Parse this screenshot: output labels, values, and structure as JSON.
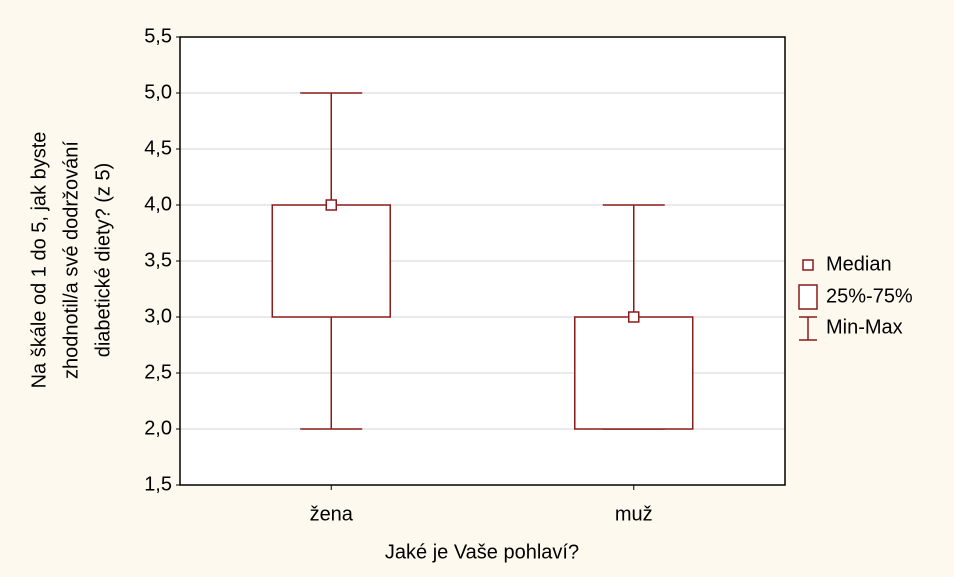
{
  "chart_data": {
    "type": "box",
    "ylabel": [
      "Na škále od 1 do 5, jak byste",
      "zhodnotil/a své dodržování",
      "diabetické diety? (z 5)"
    ],
    "xlabel": "Jaké je Vaše pohlaví?",
    "categories": [
      "žena",
      "muž"
    ],
    "min": [
      2,
      2
    ],
    "q1": [
      3,
      2
    ],
    "median": [
      4,
      3
    ],
    "q3": [
      4,
      3
    ],
    "max": [
      5,
      4
    ],
    "color": "#8b1a1a",
    "legend": [
      "Median",
      "25%-75%",
      "Min-Max"
    ],
    "legend_position": "right",
    "ylim": [
      1.5,
      5.5
    ],
    "yticks": [
      {
        "value": 1.5,
        "label": "1,5"
      },
      {
        "value": 2,
        "label": "2,0"
      },
      {
        "value": 2.5,
        "label": "2,5"
      },
      {
        "value": 3,
        "label": "3,0"
      },
      {
        "value": 3.5,
        "label": "3,5"
      },
      {
        "value": 4,
        "label": "4,0"
      },
      {
        "value": 4.5,
        "label": "4,5"
      },
      {
        "value": 5,
        "label": "5,0"
      },
      {
        "value": 5.5,
        "label": "5,5"
      }
    ],
    "grid": true
  }
}
